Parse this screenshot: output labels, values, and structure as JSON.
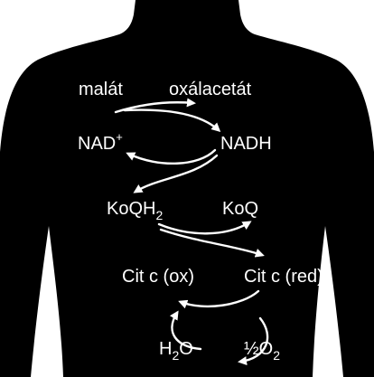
{
  "colors": {
    "background": "#ffffff",
    "silhouette": "#000000",
    "text": "#ffffff",
    "arrows": "#ffffff"
  },
  "icons": {
    "silhouette": "human-torso-silhouette-icon"
  },
  "rows": [
    {
      "left": "malát",
      "right": "oxálacetát"
    },
    {
      "left": "NAD",
      "left_sup": "+",
      "right": "NADH"
    },
    {
      "left": "KoQH",
      "left_sub": "2",
      "right": "KoQ"
    },
    {
      "left": "Cit c (ox)",
      "right": "Cit c (red)"
    },
    {
      "left": "H",
      "left_sub": "2",
      "left_tail": "O",
      "right": "½O",
      "right_sub": "2"
    }
  ]
}
